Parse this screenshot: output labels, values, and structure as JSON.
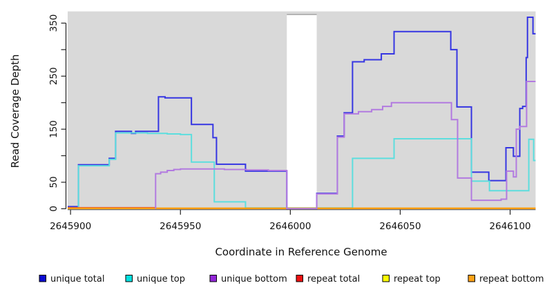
{
  "chart_data": {
    "type": "line",
    "step": true,
    "title": "",
    "xlabel": "Coordinate in Reference Genome",
    "ylabel": "Read Coverage Depth",
    "panel_bg": "#d9d9d9",
    "grid": false,
    "legend_position": "bottom",
    "xlim": [
      2645898.7,
      2646111.6
    ],
    "ylim": [
      -1.2,
      372.1
    ],
    "x_ticks": [
      {
        "v": 2645900,
        "label": "2645900"
      },
      {
        "v": 2645950,
        "label": "2645950"
      },
      {
        "v": 2646000,
        "label": "2646000"
      },
      {
        "v": 2646050,
        "label": "2646050"
      },
      {
        "v": 2646100,
        "label": "2646100"
      }
    ],
    "y_ticks": [
      {
        "v": 0,
        "label": "0"
      },
      {
        "v": 50,
        "label": "50"
      },
      {
        "v": 100,
        "label": ""
      },
      {
        "v": 150,
        "label": "150"
      },
      {
        "v": 200,
        "label": ""
      },
      {
        "v": 250,
        "label": "250"
      },
      {
        "v": 300,
        "label": ""
      },
      {
        "v": 350,
        "label": "350"
      }
    ],
    "mask_region": {
      "x1": 2645998.4,
      "x2": 2646012.0,
      "top_value": 366.3,
      "fill": "#ffffff",
      "border": "#a3a3a3"
    },
    "series": [
      {
        "label": "unique total",
        "line_color": "#3535e2",
        "swatch_color": "#0b0bd0",
        "points": [
          [
            2645898.7,
            4
          ],
          [
            2645903.6,
            83
          ],
          [
            2645917.6,
            95
          ],
          [
            2645920.5,
            146
          ],
          [
            2645927.7,
            142
          ],
          [
            2645929.6,
            146
          ],
          [
            2645940,
            211
          ],
          [
            2645943,
            209
          ],
          [
            2645955,
            159
          ],
          [
            2645964.8,
            134
          ],
          [
            2645966.4,
            84
          ],
          [
            2645979.6,
            71
          ],
          [
            2645998.4,
            0.4
          ],
          [
            2646012,
            29
          ],
          [
            2646021.4,
            137
          ],
          [
            2646024.5,
            181
          ],
          [
            2646028.3,
            277
          ],
          [
            2646033.6,
            281
          ],
          [
            2646041.4,
            292
          ],
          [
            2646047.2,
            334
          ],
          [
            2646073,
            300
          ],
          [
            2646075.8,
            192
          ],
          [
            2646082.4,
            69
          ],
          [
            2646090.3,
            53
          ],
          [
            2646098.1,
            115
          ],
          [
            2646101.5,
            99
          ],
          [
            2646104.4,
            189
          ],
          [
            2646105.7,
            193
          ],
          [
            2646107.3,
            285
          ],
          [
            2646107.9,
            361
          ],
          [
            2646110.4,
            330
          ],
          [
            2646111.6,
            330
          ]
        ]
      },
      {
        "label": "unique top",
        "line_color": "#5cdede",
        "swatch_color": "#00e0e0",
        "points": [
          [
            2645898.7,
            2
          ],
          [
            2645903.6,
            81
          ],
          [
            2645917.6,
            93
          ],
          [
            2645920.5,
            143
          ],
          [
            2645935,
            142
          ],
          [
            2645944,
            141
          ],
          [
            2645950,
            140
          ],
          [
            2645955,
            88
          ],
          [
            2645965.4,
            13
          ],
          [
            2645979.6,
            1.5
          ],
          [
            2646028.3,
            95
          ],
          [
            2646047.2,
            132
          ],
          [
            2646082.4,
            52
          ],
          [
            2646090.6,
            34
          ],
          [
            2646108.5,
            131
          ],
          [
            2646110.7,
            91
          ],
          [
            2646111.6,
            91
          ]
        ]
      },
      {
        "label": "unique bottom",
        "line_color": "#b27ae0",
        "swatch_color": "#9327d8",
        "points": [
          [
            2645938.7,
            0
          ],
          [
            2645938.7,
            66
          ],
          [
            2645941,
            69
          ],
          [
            2645944,
            72
          ],
          [
            2645947,
            74
          ],
          [
            2645950,
            75
          ],
          [
            2645962,
            75
          ],
          [
            2645970,
            74
          ],
          [
            2645980,
            73
          ],
          [
            2645990,
            72
          ],
          [
            2645998.4,
            0.2
          ],
          [
            2646012,
            28
          ],
          [
            2646021.4,
            135
          ],
          [
            2646024.5,
            179
          ],
          [
            2646031,
            183
          ],
          [
            2646037,
            187
          ],
          [
            2646042,
            193
          ],
          [
            2646046,
            200
          ],
          [
            2646073.3,
            168
          ],
          [
            2646076.1,
            58
          ],
          [
            2646082.4,
            16
          ],
          [
            2646095.9,
            18
          ],
          [
            2646098.4,
            71
          ],
          [
            2646101.5,
            60
          ],
          [
            2646102.8,
            150
          ],
          [
            2646104.3,
            155
          ],
          [
            2646107.5,
            240
          ],
          [
            2646111.6,
            240
          ]
        ]
      },
      {
        "label": "repeat total",
        "line_color": "#e04040",
        "swatch_color": "#ee1111",
        "points": [
          [
            2645898.7,
            2
          ],
          [
            2645938.7,
            0.8
          ],
          [
            2646111.6,
            0.8
          ]
        ]
      },
      {
        "label": "repeat top",
        "line_color": "#f0f000",
        "swatch_color": "#fdfd00",
        "points": [
          [
            2645898.7,
            0.8
          ],
          [
            2646111.6,
            0.8
          ]
        ]
      },
      {
        "label": "repeat bottom",
        "line_color": "#ff9807",
        "swatch_color": "#ffa116",
        "points": [
          [
            2645898.7,
            0.8
          ],
          [
            2646111.6,
            0.8
          ]
        ]
      }
    ]
  }
}
